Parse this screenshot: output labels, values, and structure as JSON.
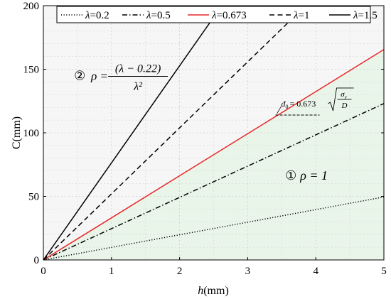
{
  "chart_data": {
    "type": "line",
    "xlabel": {
      "var": "h",
      "unit": "(mm)"
    },
    "ylabel": "C(mm)",
    "xlim": [
      0,
      5
    ],
    "ylim": [
      0,
      200
    ],
    "xticks": [
      "0",
      "1",
      "2",
      "3",
      "4",
      "5"
    ],
    "yticks": [
      "0",
      "50",
      "100",
      "150",
      "200"
    ],
    "grid": true,
    "legend_position": "top",
    "series": [
      {
        "name": "λ=0.2",
        "legend_sym": "λ",
        "legend_val": "=0.2",
        "x": [
          0,
          5
        ],
        "y": [
          0,
          49.5
        ],
        "color": "#000000",
        "style": "dotted"
      },
      {
        "name": "λ=0.5",
        "legend_sym": "λ",
        "legend_val": "=0.5",
        "x": [
          0,
          5
        ],
        "y": [
          0,
          123
        ],
        "color": "#000000",
        "style": "dashdot"
      },
      {
        "name": "λ=0.673",
        "legend_sym": "λ",
        "legend_val": "=0.673",
        "x": [
          0,
          5
        ],
        "y": [
          0,
          165.5
        ],
        "color": "#e8282b",
        "style": "solid"
      },
      {
        "name": "λ=1",
        "legend_sym": "λ",
        "legend_val": "=1",
        "x": [
          0,
          3.85
        ],
        "y": [
          0,
          200
        ],
        "color": "#000000",
        "style": "dashed"
      },
      {
        "name": "λ=1.5",
        "legend_sym": "λ",
        "legend_val": "=1.5",
        "x": [
          0,
          2.62
        ],
        "y": [
          0,
          200
        ],
        "color": "#000000",
        "style": "solid"
      }
    ],
    "annotations": {
      "region1": {
        "circle": "①",
        "text": "ρ = 1",
        "x": 3.55,
        "y": 63
      },
      "region2": {
        "circle": "②",
        "formula_lhs": "ρ =",
        "numerator": "(λ − 0.22)",
        "denominator": "λ²",
        "x": 0.45,
        "y": 145
      },
      "d0": {
        "lhs": "d",
        "lhs_sub": "0",
        "coef": "= 0.673",
        "sqrt_num": "σ",
        "sqrt_num_sub": "y",
        "sqrt_den": "D",
        "x": 3.45,
        "y": 114
      }
    },
    "colors": {
      "shade_region1": "#eaf5ea",
      "shade_region2": "#f6f6f6",
      "grid": "#cfcfcf",
      "red": "#e8282b"
    }
  }
}
